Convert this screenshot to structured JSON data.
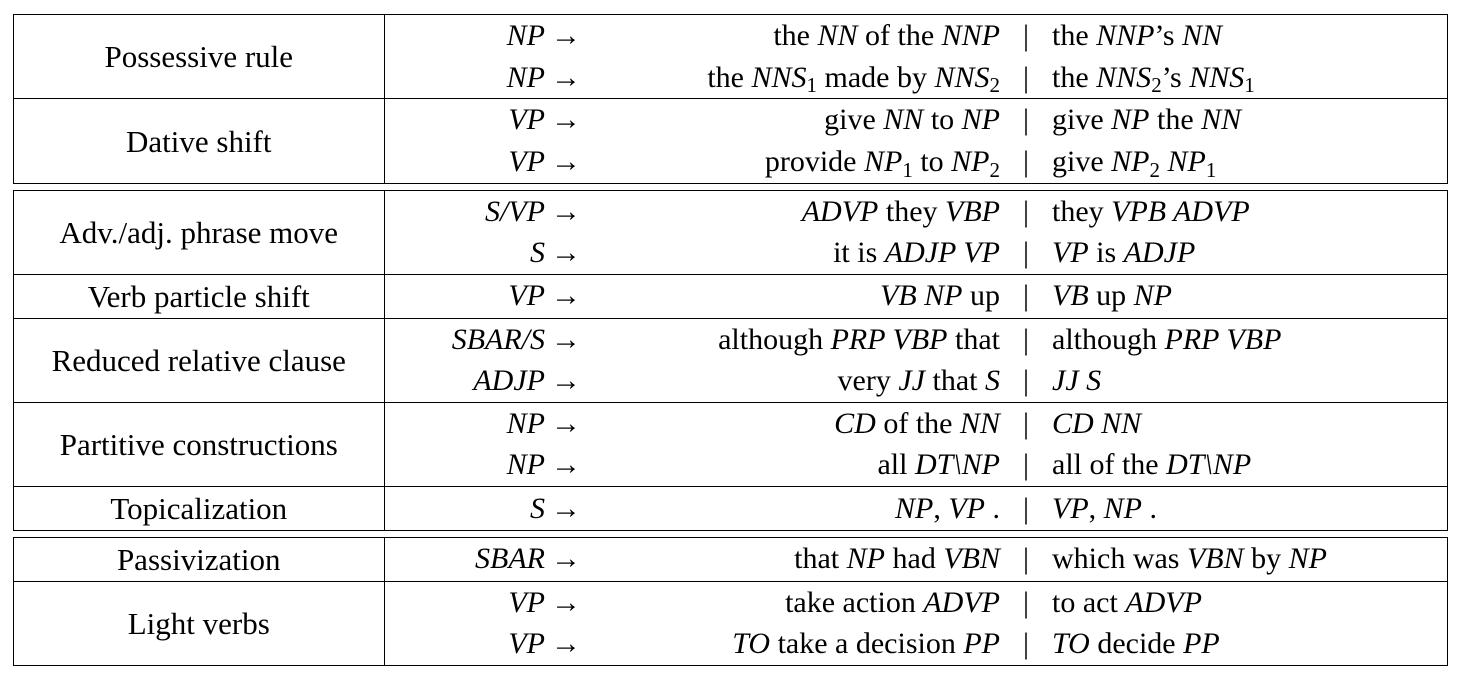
{
  "blocks": [
    {
      "groups": [
        {
          "name": "Possessive rule",
          "rules": [
            {
              "lhs": "NP",
              "arrow": "→",
              "src": [
                {
                  "t": "the "
                },
                {
                  "m": "NN"
                },
                {
                  "t": " of the "
                },
                {
                  "m": "NNP"
                }
              ],
              "bar": "|",
              "tgt": [
                {
                  "t": "the "
                },
                {
                  "m": "NNP"
                },
                {
                  "t": "’s "
                },
                {
                  "m": "NN"
                }
              ]
            },
            {
              "lhs": "NP",
              "arrow": "→",
              "src": [
                {
                  "t": "the "
                },
                {
                  "m": "NNS"
                },
                {
                  "s": "1"
                },
                {
                  "t": " made by "
                },
                {
                  "m": "NNS"
                },
                {
                  "s": "2"
                }
              ],
              "bar": "|",
              "tgt": [
                {
                  "t": "the "
                },
                {
                  "m": "NNS"
                },
                {
                  "s": "2"
                },
                {
                  "t": "’s "
                },
                {
                  "m": "NNS"
                },
                {
                  "s": "1"
                }
              ]
            }
          ]
        },
        {
          "name": "Dative shift",
          "rules": [
            {
              "lhs": "VP",
              "arrow": "→",
              "src": [
                {
                  "t": "give "
                },
                {
                  "m": "NN"
                },
                {
                  "t": " to "
                },
                {
                  "m": "NP"
                }
              ],
              "bar": "|",
              "tgt": [
                {
                  "t": "give "
                },
                {
                  "m": "NP"
                },
                {
                  "t": " the "
                },
                {
                  "m": "NN"
                }
              ]
            },
            {
              "lhs": "VP",
              "arrow": "→",
              "src": [
                {
                  "t": "provide "
                },
                {
                  "m": "NP"
                },
                {
                  "s": "1"
                },
                {
                  "t": " to "
                },
                {
                  "m": "NP"
                },
                {
                  "s": "2"
                }
              ],
              "bar": "|",
              "tgt": [
                {
                  "t": "give "
                },
                {
                  "m": "NP"
                },
                {
                  "s": "2"
                },
                {
                  "t": " "
                },
                {
                  "m": "NP"
                },
                {
                  "s": "1"
                }
              ]
            }
          ]
        }
      ]
    },
    {
      "groups": [
        {
          "name": "Adv./adj. phrase move",
          "rules": [
            {
              "lhs": "S/VP",
              "arrow": "→",
              "src": [
                {
                  "m": "ADVP"
                },
                {
                  "t": " they "
                },
                {
                  "m": "VBP"
                }
              ],
              "bar": "|",
              "tgt": [
                {
                  "t": "they "
                },
                {
                  "m": "VPB ADVP"
                }
              ]
            },
            {
              "lhs": "S",
              "arrow": "→",
              "src": [
                {
                  "t": "it is "
                },
                {
                  "m": "ADJP VP"
                }
              ],
              "bar": "|",
              "tgt": [
                {
                  "m": "VP"
                },
                {
                  "t": " is "
                },
                {
                  "m": "ADJP"
                }
              ]
            }
          ]
        },
        {
          "name": "Verb particle shift",
          "rules": [
            {
              "lhs": "VP",
              "arrow": "→",
              "src": [
                {
                  "m": "VB NP"
                },
                {
                  "t": " up"
                }
              ],
              "bar": "|",
              "tgt": [
                {
                  "m": "VB"
                },
                {
                  "t": " up "
                },
                {
                  "m": "NP"
                }
              ]
            }
          ]
        },
        {
          "name": "Reduced relative clause",
          "rules": [
            {
              "lhs": "SBAR/S",
              "arrow": "→",
              "src": [
                {
                  "t": "although "
                },
                {
                  "m": "PRP VBP"
                },
                {
                  "t": " that"
                }
              ],
              "bar": "|",
              "tgt": [
                {
                  "t": "although "
                },
                {
                  "m": "PRP VBP"
                }
              ]
            },
            {
              "lhs": "ADJP",
              "arrow": "→",
              "src": [
                {
                  "t": "very "
                },
                {
                  "m": "JJ"
                },
                {
                  "t": " that "
                },
                {
                  "m": "S"
                }
              ],
              "bar": "|",
              "tgt": [
                {
                  "m": "JJ S"
                }
              ]
            }
          ]
        },
        {
          "name": "Partitive constructions",
          "rules": [
            {
              "lhs": "NP",
              "arrow": "→",
              "src": [
                {
                  "m": "CD"
                },
                {
                  "t": " of the "
                },
                {
                  "m": "NN"
                }
              ],
              "bar": "|",
              "tgt": [
                {
                  "m": "CD NN"
                }
              ]
            },
            {
              "lhs": "NP",
              "arrow": "→",
              "src": [
                {
                  "t": "all "
                },
                {
                  "m": "DT\\NP"
                }
              ],
              "bar": "|",
              "tgt": [
                {
                  "t": "all of the "
                },
                {
                  "m": "DT\\NP"
                }
              ]
            }
          ]
        },
        {
          "name": "Topicalization",
          "rules": [
            {
              "lhs": "S",
              "arrow": "→",
              "src": [
                {
                  "m": "NP"
                },
                {
                  "t": ", "
                },
                {
                  "m": "VP"
                },
                {
                  "t": " ."
                }
              ],
              "bar": "|",
              "tgt": [
                {
                  "m": "VP"
                },
                {
                  "t": ", "
                },
                {
                  "m": "NP"
                },
                {
                  "t": " ."
                }
              ]
            }
          ]
        }
      ]
    },
    {
      "groups": [
        {
          "name": "Passivization",
          "rules": [
            {
              "lhs": "SBAR",
              "arrow": "→",
              "src": [
                {
                  "t": "that "
                },
                {
                  "m": "NP"
                },
                {
                  "t": " had "
                },
                {
                  "m": "VBN"
                }
              ],
              "bar": "|",
              "tgt": [
                {
                  "t": "which was "
                },
                {
                  "m": "VBN"
                },
                {
                  "t": " by "
                },
                {
                  "m": "NP"
                }
              ]
            }
          ]
        },
        {
          "name": "Light verbs",
          "rules": [
            {
              "lhs": "VP",
              "arrow": "→",
              "src": [
                {
                  "t": "take action "
                },
                {
                  "m": "ADVP"
                }
              ],
              "bar": "|",
              "tgt": [
                {
                  "t": "to act "
                },
                {
                  "m": "ADVP"
                }
              ]
            },
            {
              "lhs": "VP",
              "arrow": "→",
              "src": [
                {
                  "m": "TO"
                },
                {
                  "t": " take a decision "
                },
                {
                  "m": "PP"
                }
              ],
              "bar": "|",
              "tgt": [
                {
                  "m": "TO"
                },
                {
                  "t": " decide "
                },
                {
                  "m": "PP"
                }
              ]
            }
          ]
        }
      ]
    }
  ]
}
